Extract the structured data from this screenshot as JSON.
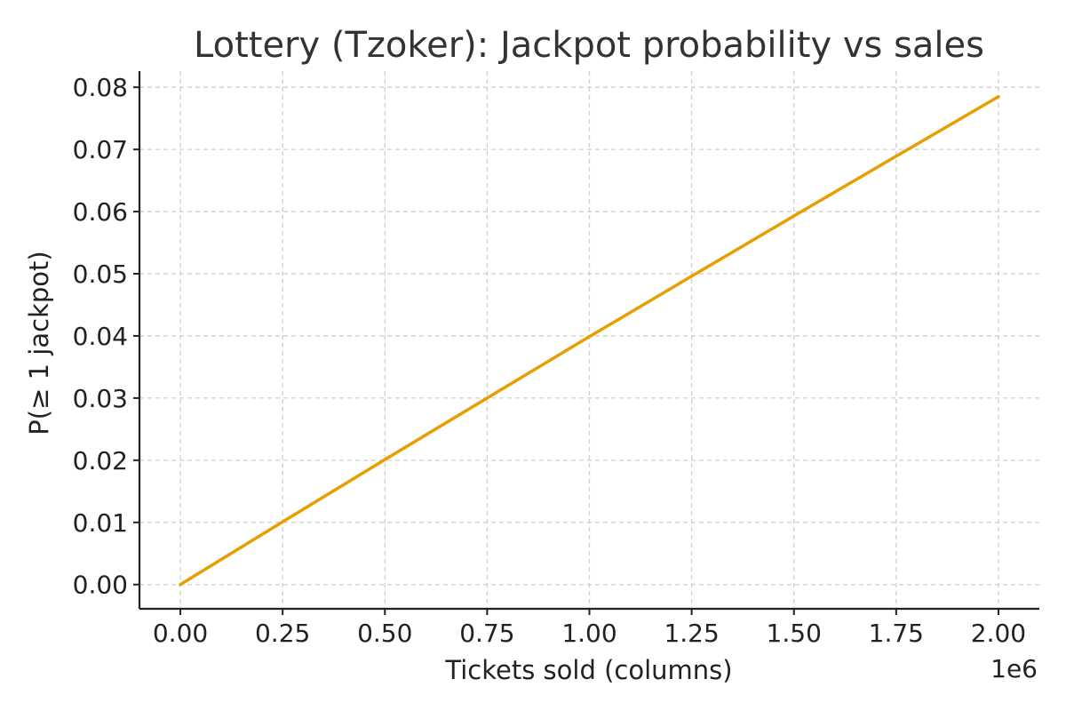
{
  "chart_data": {
    "type": "line",
    "title": "Lottery (Tzoker): Jackpot probability vs sales",
    "xlabel": "Tickets sold (columns)",
    "ylabel": "P(≥ 1 jackpot)",
    "x_offset_text": "1e6",
    "xlim": [
      -100000,
      2100000
    ],
    "ylim": [
      -0.0039,
      0.0826
    ],
    "x_ticks": [
      0,
      250000,
      500000,
      750000,
      1000000,
      1250000,
      1500000,
      1750000,
      2000000
    ],
    "x_tick_labels": [
      "0.00",
      "0.25",
      "0.50",
      "0.75",
      "1.00",
      "1.25",
      "1.50",
      "1.75",
      "2.00"
    ],
    "y_ticks": [
      0.0,
      0.01,
      0.02,
      0.03,
      0.04,
      0.05,
      0.06,
      0.07,
      0.08
    ],
    "y_tick_labels": [
      "0.00",
      "0.01",
      "0.02",
      "0.03",
      "0.04",
      "0.05",
      "0.06",
      "0.07",
      "0.08"
    ],
    "grid": true,
    "colors": {
      "series": "#E69F00",
      "axis": "#222222",
      "grid": "#cfcfcf",
      "title": "#333333"
    },
    "series": [
      {
        "x": [
          0,
          250000,
          500000,
          750000,
          1000000,
          1250000,
          1500000,
          1750000,
          2000000
        ],
        "values": [
          0.0,
          0.0101,
          0.0201,
          0.03,
          0.0399,
          0.0496,
          0.0593,
          0.0689,
          0.0785
        ]
      }
    ]
  }
}
